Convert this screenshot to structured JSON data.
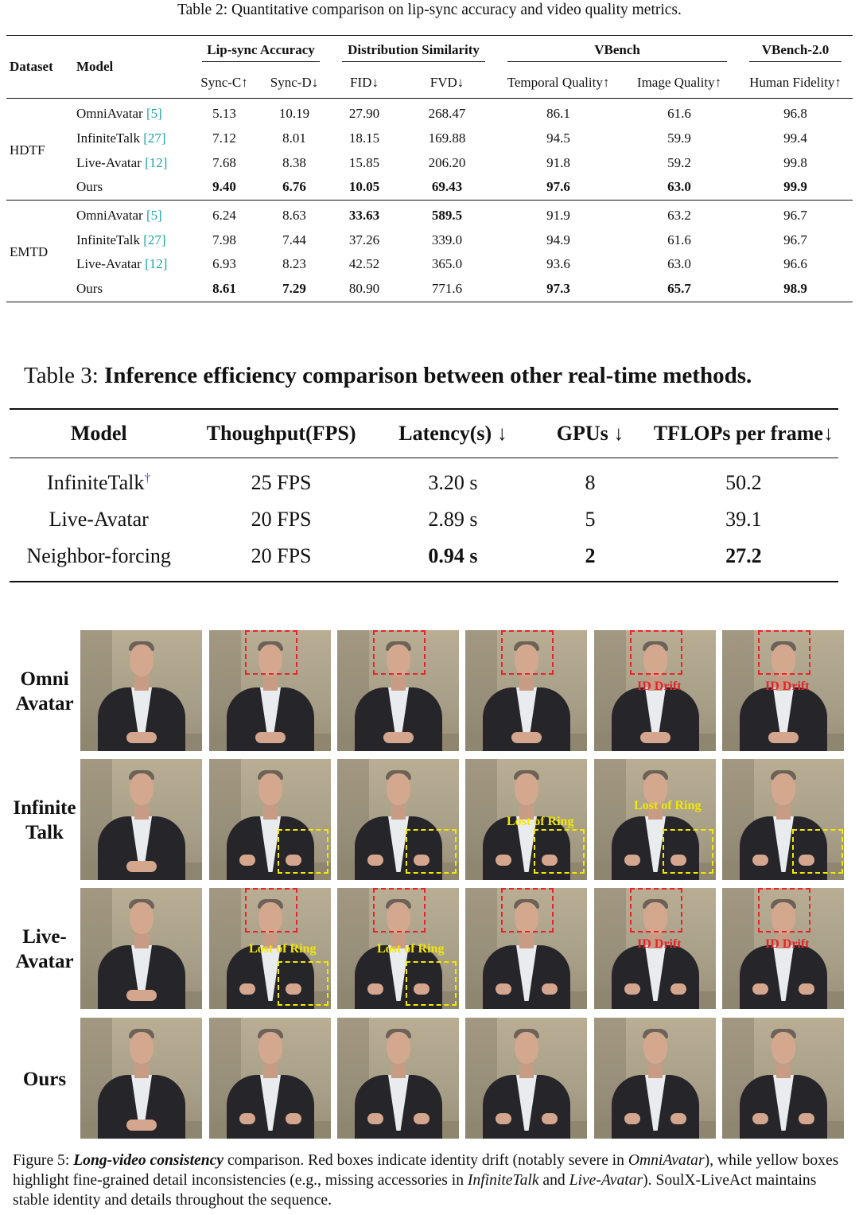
{
  "table2": {
    "caption_label": "Table 2:",
    "caption_text": "Quantitative comparison on lip-sync accuracy and video quality metrics.",
    "header": {
      "dataset": "Dataset",
      "model": "Model",
      "groups": [
        "Lip-sync Accuracy",
        "Distribution Similarity",
        "VBench",
        "VBench-2.0"
      ],
      "columns": [
        "Sync-C↑",
        "Sync-D↓",
        "FID↓",
        "FVD↓",
        "Temporal Quality↑",
        "Image Quality↑",
        "Human Fidelity↑"
      ]
    },
    "datasets": [
      {
        "name": "HDTF",
        "rows": [
          {
            "model": "OmniAvatar",
            "cite": "[5]",
            "values": [
              "5.13",
              "10.19",
              "27.90",
              "268.47",
              "86.1",
              "61.6",
              "96.8"
            ]
          },
          {
            "model": "InfiniteTalk",
            "cite": "[27]",
            "values": [
              "7.12",
              "8.01",
              "18.15",
              "169.88",
              "94.5",
              "59.9",
              "99.4"
            ]
          },
          {
            "model": "Live-Avatar",
            "cite": "[12]",
            "values": [
              "7.68",
              "8.38",
              "15.85",
              "206.20",
              "91.8",
              "59.2",
              "99.8"
            ]
          },
          {
            "model": "Ours",
            "cite": "",
            "values": [
              "9.40",
              "6.76",
              "10.05",
              "69.43",
              "97.6",
              "63.0",
              "99.9"
            ]
          }
        ]
      },
      {
        "name": "EMTD",
        "rows": [
          {
            "model": "OmniAvatar",
            "cite": "[5]",
            "values": [
              "6.24",
              "8.63",
              "33.63",
              "589.5",
              "91.9",
              "63.2",
              "96.7"
            ]
          },
          {
            "model": "InfiniteTalk",
            "cite": "[27]",
            "values": [
              "7.98",
              "7.44",
              "37.26",
              "339.0",
              "94.9",
              "61.6",
              "96.7"
            ]
          },
          {
            "model": "Live-Avatar",
            "cite": "[12]",
            "values": [
              "6.93",
              "8.23",
              "42.52",
              "365.0",
              "93.6",
              "63.0",
              "96.6"
            ]
          },
          {
            "model": "Ours",
            "cite": "",
            "values": [
              "8.61",
              "7.29",
              "80.90",
              "771.6",
              "97.3",
              "65.7",
              "98.9"
            ]
          }
        ]
      }
    ]
  },
  "table3": {
    "caption_label": "Table 3:",
    "caption_text": "Inference efficiency comparison between other real-time methods.",
    "columns": [
      "Model",
      "Thoughput(FPS)",
      "Latency(s) ↓",
      "GPUs ↓",
      "TFLOPs per frame↓"
    ],
    "rows": [
      {
        "model": "InfiniteTalk",
        "mark": "†",
        "values": [
          "25 FPS",
          "3.20 s",
          "8",
          "50.2"
        ]
      },
      {
        "model": "Live-Avatar",
        "mark": "",
        "values": [
          "20 FPS",
          "2.89 s",
          "5",
          "39.1"
        ]
      },
      {
        "model": "Neighbor-forcing",
        "mark": "",
        "values": [
          "20 FPS",
          "0.94 s",
          "2",
          "27.2"
        ]
      }
    ]
  },
  "figure5": {
    "row_labels": [
      [
        "Omni",
        "Avatar"
      ],
      [
        "Infinite",
        "Talk"
      ],
      [
        "Live-",
        "Avatar"
      ],
      [
        "Ours"
      ]
    ],
    "annotations": {
      "id_drift": "ID Drift",
      "lost_of_ring": "Lost of Ring"
    },
    "caption": {
      "label": "Figure 5:",
      "emph": "Long-video consistency",
      "t1": " comparison. Red boxes indicate identity drift (notably severe in ",
      "omni": "OmniAvatar",
      "t2": "), while yellow boxes highlight fine-grained detail inconsistencies (e.g., missing accessories in ",
      "infinite": "InfiniteTalk",
      "t3": " and ",
      "live": "Live-Avatar",
      "t4": "). SoulX-LiveAct maintains stable identity and details throughout the sequence."
    }
  }
}
